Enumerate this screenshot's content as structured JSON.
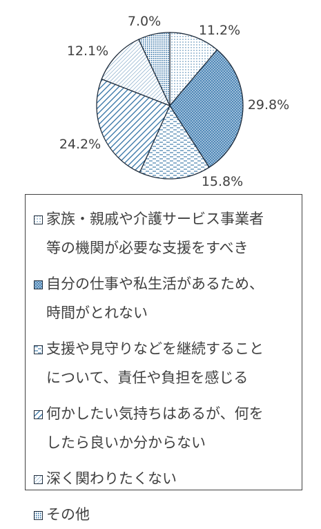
{
  "chart_data": {
    "type": "pie",
    "categories": [
      "家族・親戚や介護サービス事業者等の機関が必要な支援をすべき",
      "自分の仕事や私生活があるため、時間がとれない",
      "支援や見守りなどを継続することについて、責任や負担を感じる",
      "何かしたい気持ちはあるが、何をしたら良いか分からない",
      "深く関わりたくない",
      "その他"
    ],
    "values": [
      11.2,
      29.8,
      15.8,
      24.2,
      12.1,
      7.0
    ],
    "data_labels": [
      "11.2%",
      "29.8%",
      "15.8%",
      "24.2%",
      "12.1%",
      "7.0%"
    ],
    "legend_lines": [
      [
        "家族・親戚や介護サービス事業者",
        "等の機関が必要な支援をすべき"
      ],
      [
        "自分の仕事や私生活があるため、",
        "時間がとれない"
      ],
      [
        "支援や見守りなどを継続すること",
        "について、責任や負担を感じる"
      ],
      [
        "何かしたい気持ちはあるが、何を",
        "したら良いか分からない"
      ],
      [
        "深く関わりたくない"
      ],
      [
        "その他"
      ]
    ],
    "patterns": [
      "dots-sparse",
      "dots-dense",
      "dashes-horizontal",
      "diagonal-lines-wide",
      "diagonal-lines-thin",
      "grid-dense"
    ],
    "colors": {
      "pattern": "#2e6fa3",
      "fill_dark": "#4f88b8",
      "edge": "#1f2d3d"
    },
    "start_angle_deg": -90,
    "direction": "clockwise",
    "legend_position": "below"
  }
}
